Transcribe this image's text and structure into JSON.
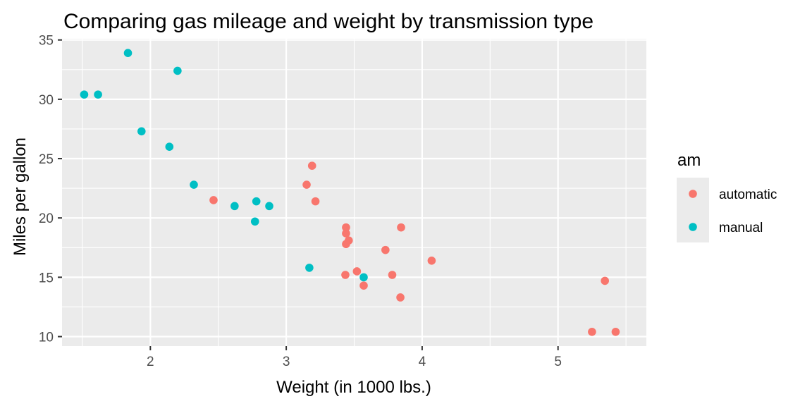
{
  "chart_data": {
    "type": "scatter",
    "title": "Comparing gas mileage and weight by transmission type",
    "xlabel": "Weight (in 1000 lbs.)",
    "ylabel": "Miles per gallon",
    "xlim": [
      1.35,
      5.65
    ],
    "ylim": [
      9.2,
      35.1
    ],
    "x_ticks": [
      2,
      3,
      4,
      5
    ],
    "y_ticks": [
      10,
      15,
      20,
      25,
      30,
      35
    ],
    "grid": true,
    "legend": {
      "title": "am",
      "placement": "right"
    },
    "series": [
      {
        "name": "automatic",
        "color": "#F8766D",
        "points": [
          [
            3.215,
            21.4
          ],
          [
            3.44,
            18.7
          ],
          [
            3.46,
            18.1
          ],
          [
            3.57,
            14.3
          ],
          [
            3.19,
            24.4
          ],
          [
            3.15,
            22.8
          ],
          [
            3.44,
            19.2
          ],
          [
            3.44,
            17.8
          ],
          [
            4.07,
            16.4
          ],
          [
            3.73,
            17.3
          ],
          [
            3.78,
            15.2
          ],
          [
            5.25,
            10.4
          ],
          [
            5.424,
            10.4
          ],
          [
            5.345,
            14.7
          ],
          [
            2.465,
            21.5
          ],
          [
            3.52,
            15.5
          ],
          [
            3.435,
            15.2
          ],
          [
            3.84,
            13.3
          ],
          [
            3.845,
            19.2
          ]
        ]
      },
      {
        "name": "manual",
        "color": "#00BFC4",
        "points": [
          [
            2.62,
            21.0
          ],
          [
            2.875,
            21.0
          ],
          [
            2.32,
            22.8
          ],
          [
            2.2,
            32.4
          ],
          [
            1.615,
            30.4
          ],
          [
            1.835,
            33.9
          ],
          [
            1.935,
            27.3
          ],
          [
            2.14,
            26.0
          ],
          [
            1.513,
            30.4
          ],
          [
            3.17,
            15.8
          ],
          [
            2.77,
            19.7
          ],
          [
            3.57,
            15.0
          ],
          [
            2.78,
            21.4
          ]
        ]
      }
    ]
  }
}
